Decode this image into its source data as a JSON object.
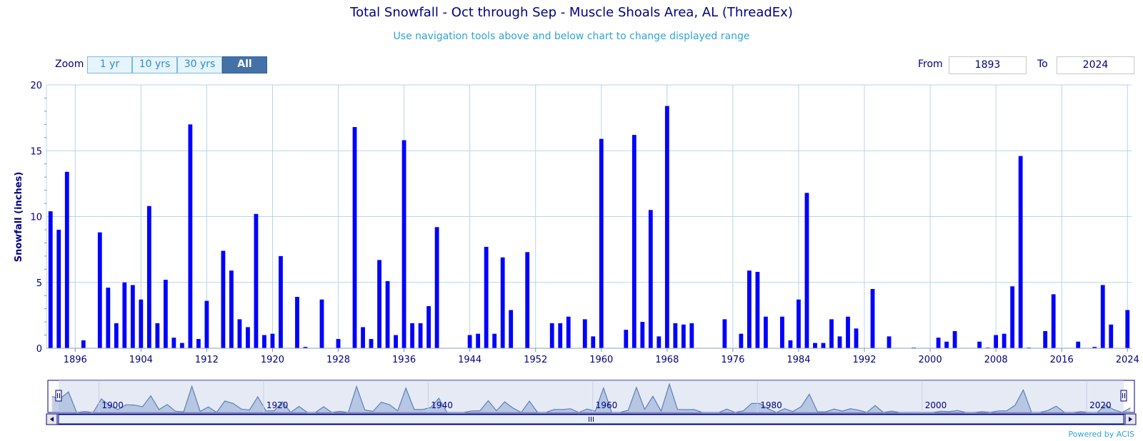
{
  "header": {
    "title": "Total Snowfall - Oct through Sep - Muscle Shoals Area, AL (ThreadEx)",
    "subtitle": "Use navigation tools above and below chart to change displayed range"
  },
  "zoom": {
    "label": "Zoom",
    "buttons": [
      "1 yr",
      "10 yrs",
      "30 yrs",
      "All"
    ],
    "active": "All"
  },
  "range": {
    "from_label": "From",
    "from_value": "1893",
    "to_label": "To",
    "to_value": "2024"
  },
  "credit": "Powered by ACIS",
  "colors": {
    "bar": "#0000ff",
    "grid": "#b7d5ec",
    "axis_text": "#000080",
    "navigator_fill": "#d3dcee",
    "navigator_line": "#5e80b8"
  },
  "chart_data": {
    "type": "bar",
    "title": "Total Snowfall - Oct through Sep - Muscle Shoals Area, AL (ThreadEx)",
    "subtitle": "Use navigation tools above and below chart to change displayed range",
    "xlabel": "",
    "ylabel": "Snowfall (inches)",
    "ylim": [
      0,
      20
    ],
    "yticks": [
      0,
      5,
      10,
      15,
      20
    ],
    "xlim": [
      1893,
      2024
    ],
    "xticks": [
      1896,
      1904,
      1912,
      1920,
      1928,
      1936,
      1944,
      1952,
      1960,
      1968,
      1976,
      1984,
      1992,
      2000,
      2008,
      2016,
      2024
    ],
    "navigator_ticks": [
      1900,
      1920,
      1940,
      1960,
      1980,
      2000,
      2020
    ],
    "grid": true,
    "legend": "none",
    "x": [
      1893,
      1894,
      1895,
      1897,
      1899,
      1900,
      1901,
      1902,
      1903,
      1904,
      1905,
      1906,
      1907,
      1908,
      1909,
      1910,
      1911,
      1912,
      1914,
      1915,
      1916,
      1917,
      1918,
      1919,
      1920,
      1921,
      1923,
      1924,
      1926,
      1928,
      1930,
      1931,
      1932,
      1933,
      1934,
      1935,
      1936,
      1937,
      1938,
      1939,
      1940,
      1944,
      1945,
      1946,
      1947,
      1948,
      1949,
      1951,
      1954,
      1955,
      1956,
      1958,
      1959,
      1960,
      1963,
      1964,
      1965,
      1966,
      1967,
      1968,
      1969,
      1970,
      1971,
      1975,
      1977,
      1978,
      1979,
      1980,
      1982,
      1983,
      1984,
      1985,
      1986,
      1987,
      1988,
      1989,
      1990,
      1991,
      1993,
      1995,
      1998,
      2001,
      2002,
      2003,
      2006,
      2007,
      2008,
      2009,
      2010,
      2011,
      2012,
      2014,
      2015,
      2018,
      2020,
      2021,
      2022,
      2024
    ],
    "values": [
      10.4,
      9.0,
      13.4,
      0.6,
      8.8,
      4.6,
      1.9,
      5.0,
      4.8,
      3.7,
      10.8,
      1.9,
      5.2,
      0.8,
      0.4,
      17.0,
      0.7,
      3.6,
      7.4,
      5.9,
      2.2,
      1.6,
      10.2,
      1.0,
      1.1,
      7.0,
      3.9,
      0.1,
      3.7,
      0.7,
      16.8,
      1.6,
      0.7,
      6.7,
      5.1,
      1.0,
      15.8,
      1.9,
      1.9,
      3.2,
      9.2,
      1.0,
      1.1,
      7.7,
      1.1,
      6.9,
      2.9,
      7.3,
      1.9,
      1.9,
      2.4,
      2.2,
      0.9,
      15.9,
      1.4,
      16.2,
      2.0,
      10.5,
      0.9,
      18.4,
      1.9,
      1.8,
      1.9,
      2.2,
      1.1,
      5.9,
      5.8,
      2.4,
      2.4,
      0.6,
      3.7,
      11.8,
      0.4,
      0.4,
      2.2,
      0.9,
      2.4,
      1.5,
      4.5,
      0.9,
      0.05,
      0.8,
      0.5,
      1.3,
      0.5,
      0.05,
      1.0,
      1.1,
      4.7,
      14.6,
      0.05,
      1.3,
      4.1,
      0.5,
      0.1,
      4.8,
      1.8,
      2.9
    ]
  }
}
